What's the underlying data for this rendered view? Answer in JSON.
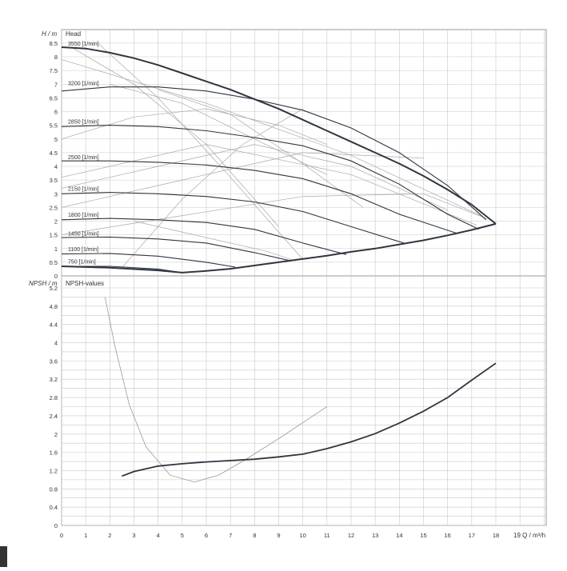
{
  "chart_data": [
    {
      "type": "line",
      "title": "Head",
      "ylabel": "H / m",
      "xlim": [
        0,
        20
      ],
      "ylim": [
        0,
        9
      ],
      "grid": true,
      "x_ticks": [
        "0",
        "1",
        "2",
        "3",
        "4",
        "5",
        "6",
        "7",
        "8",
        "9",
        "10",
        "11",
        "12",
        "13",
        "14",
        "15",
        "16",
        "17",
        "18",
        "19"
      ],
      "y_ticks": [
        "0",
        "0.5",
        "1",
        "1.5",
        "2",
        "2.5",
        "3",
        "3.5",
        "4",
        "4.5",
        "5",
        "5.5",
        "6",
        "6.5",
        "7",
        "7.5",
        "8",
        "8.5"
      ],
      "colors": {
        "curve": "#2f3640",
        "efficiency": "#a8a8a8",
        "grid": "#c8c8c8"
      },
      "series": [
        {
          "name": "3550 [1/min]",
          "x": [
            0,
            1,
            2,
            3,
            4,
            5,
            6,
            7,
            8,
            9,
            10,
            11,
            12,
            13,
            14,
            15,
            16,
            17,
            18
          ],
          "y": [
            8.35,
            8.3,
            8.15,
            7.95,
            7.7,
            7.4,
            7.1,
            6.8,
            6.45,
            6.1,
            5.7,
            5.3,
            4.9,
            4.5,
            4.1,
            3.65,
            3.15,
            2.6,
            1.9
          ]
        },
        {
          "name": "3200 [1/min]",
          "x": [
            0,
            2,
            4,
            6,
            8,
            10,
            12,
            14,
            16,
            17.6
          ],
          "y": [
            6.75,
            6.9,
            6.9,
            6.75,
            6.45,
            6.05,
            5.4,
            4.5,
            3.3,
            2.05
          ]
        },
        {
          "name": "2850 [1/min]",
          "x": [
            0,
            2,
            4,
            6,
            8,
            10,
            12,
            14,
            16,
            17.3
          ],
          "y": [
            5.45,
            5.5,
            5.45,
            5.3,
            5.05,
            4.75,
            4.2,
            3.35,
            2.25,
            1.7
          ]
        },
        {
          "name": "2500 [1/min]",
          "x": [
            0,
            2,
            4,
            6,
            8,
            10,
            12,
            14,
            16.4
          ],
          "y": [
            4.2,
            4.2,
            4.15,
            4.05,
            3.85,
            3.55,
            3.0,
            2.25,
            1.55
          ]
        },
        {
          "name": "2150 [1/min]",
          "x": [
            0,
            2,
            4,
            6,
            8,
            10,
            12,
            14,
            14.2
          ],
          "y": [
            3.0,
            3.05,
            3.0,
            2.9,
            2.7,
            2.35,
            1.8,
            1.25,
            1.2
          ]
        },
        {
          "name": "1800 [1/min]",
          "x": [
            0,
            2,
            4,
            6,
            8,
            10,
            11.8
          ],
          "y": [
            2.05,
            2.1,
            2.05,
            1.95,
            1.7,
            1.2,
            0.78
          ]
        },
        {
          "name": "1450 [1/min]",
          "x": [
            0,
            2,
            4,
            6,
            8,
            9.5
          ],
          "y": [
            1.4,
            1.42,
            1.35,
            1.2,
            0.85,
            0.55
          ]
        },
        {
          "name": "1100 [1/min]",
          "x": [
            0,
            2,
            4,
            6,
            7.2
          ],
          "y": [
            0.8,
            0.82,
            0.72,
            0.5,
            0.32
          ]
        },
        {
          "name": "750 [1/min]",
          "x": [
            0,
            2,
            4,
            5
          ],
          "y": [
            0.35,
            0.35,
            0.25,
            0.12
          ]
        },
        {
          "name": "",
          "x": [
            0,
            2,
            4,
            5,
            6,
            7,
            8,
            9,
            10,
            11,
            12,
            13,
            14,
            15,
            16,
            17,
            18
          ],
          "y": [
            0.35,
            0.3,
            0.2,
            0.12,
            0.18,
            0.26,
            0.38,
            0.5,
            0.62,
            0.74,
            0.88,
            1.0,
            1.15,
            1.3,
            1.48,
            1.68,
            1.9
          ]
        }
      ],
      "efficiency_lines": [
        {
          "x": [
            0,
            6,
            12,
            17.5
          ],
          "y": [
            7.9,
            6.3,
            4.4,
            2.15
          ]
        },
        {
          "x": [
            0,
            6,
            12,
            17.2
          ],
          "y": [
            3.6,
            4.8,
            3.7,
            1.85
          ]
        },
        {
          "x": [
            1.5,
            4,
            7,
            10
          ],
          "y": [
            8.5,
            6.5,
            3.6,
            0.6
          ]
        },
        {
          "x": [
            2,
            5,
            8,
            11
          ],
          "y": [
            7.0,
            6.3,
            5.0,
            3.7
          ]
        },
        {
          "x": [
            0.5,
            3,
            6,
            9
          ],
          "y": [
            8.3,
            7.0,
            4.8,
            1.8
          ]
        },
        {
          "x": [
            0,
            5,
            10,
            15
          ],
          "y": [
            2.5,
            3.5,
            4.5,
            4.3
          ]
        },
        {
          "x": [
            0,
            5,
            10,
            15,
            17.6
          ],
          "y": [
            1.5,
            2.2,
            2.9,
            3.0,
            2.1
          ]
        },
        {
          "x": [
            0,
            4,
            8,
            12,
            16
          ],
          "y": [
            3.2,
            4.0,
            4.8,
            4.0,
            2.4
          ]
        },
        {
          "x": [
            2.5,
            5,
            7.5,
            10
          ],
          "y": [
            0.3,
            2.8,
            4.8,
            6.1
          ]
        },
        {
          "x": [
            0,
            3,
            6,
            9,
            11
          ],
          "y": [
            5.0,
            5.8,
            6.1,
            5.5,
            4.8
          ]
        },
        {
          "x": [
            3,
            6,
            8.5,
            9.7
          ],
          "y": [
            2.0,
            1.4,
            0.9,
            0.55
          ]
        },
        {
          "x": [
            4,
            7,
            10,
            12.5
          ],
          "y": [
            6.8,
            5.9,
            4.1,
            2.5
          ]
        }
      ],
      "annotations": [
        {
          "text": "3550 [1/min]",
          "x": 0.2,
          "y": 8.35
        },
        {
          "text": "3200 [1/min]",
          "x": 0.2,
          "y": 6.9
        },
        {
          "text": "2850 [1/min]",
          "x": 0.2,
          "y": 5.5
        },
        {
          "text": "2500 [1/min]",
          "x": 0.2,
          "y": 4.2
        },
        {
          "text": "2150 [1/min]",
          "x": 0.2,
          "y": 3.05
        },
        {
          "text": "1800 [1/min]",
          "x": 0.2,
          "y": 2.1
        },
        {
          "text": "1450 [1/min]",
          "x": 0.2,
          "y": 1.42
        },
        {
          "text": "1100 [1/min]",
          "x": 0.2,
          "y": 0.85
        },
        {
          "text": "750 [1/min]",
          "x": 0.2,
          "y": 0.4
        }
      ]
    },
    {
      "type": "line",
      "title": "NPSH-values",
      "ylabel": "NPSH / m",
      "xlabel": "Q / m³/h",
      "xlim": [
        0,
        20
      ],
      "ylim": [
        0,
        5.4
      ],
      "grid": true,
      "x_ticks": [
        "0",
        "1",
        "2",
        "3",
        "4",
        "5",
        "6",
        "7",
        "8",
        "9",
        "10",
        "11",
        "12",
        "13",
        "14",
        "15",
        "16",
        "17",
        "18",
        "19"
      ],
      "y_ticks": [
        "0",
        "0.4",
        "0.8",
        "1.2",
        "1.6",
        "2",
        "2.4",
        "2.8",
        "3.2",
        "3.6",
        "4",
        "4.4",
        "4.8",
        "5.2"
      ],
      "series": [
        {
          "name": "",
          "x": [
            2.5,
            3,
            4,
            5,
            6,
            7,
            8,
            9,
            10,
            11,
            12,
            13,
            14,
            15,
            16,
            17,
            18
          ],
          "y": [
            1.08,
            1.18,
            1.3,
            1.35,
            1.39,
            1.42,
            1.45,
            1.5,
            1.56,
            1.68,
            1.83,
            2.01,
            2.24,
            2.5,
            2.8,
            3.18,
            3.55
          ]
        },
        {
          "name": "",
          "x": [
            1.8,
            2.2,
            2.8,
            3.5,
            4.5,
            5.5,
            6.5,
            7.5,
            9,
            11
          ],
          "y": [
            5.0,
            3.95,
            2.65,
            1.72,
            1.1,
            0.95,
            1.1,
            1.4,
            1.9,
            2.6
          ]
        }
      ]
    }
  ],
  "axis_labels": {
    "head_y": "H / m",
    "npsh_y": "NPSH / m",
    "x_tick_19_axis": "19 Q / m³/h"
  }
}
